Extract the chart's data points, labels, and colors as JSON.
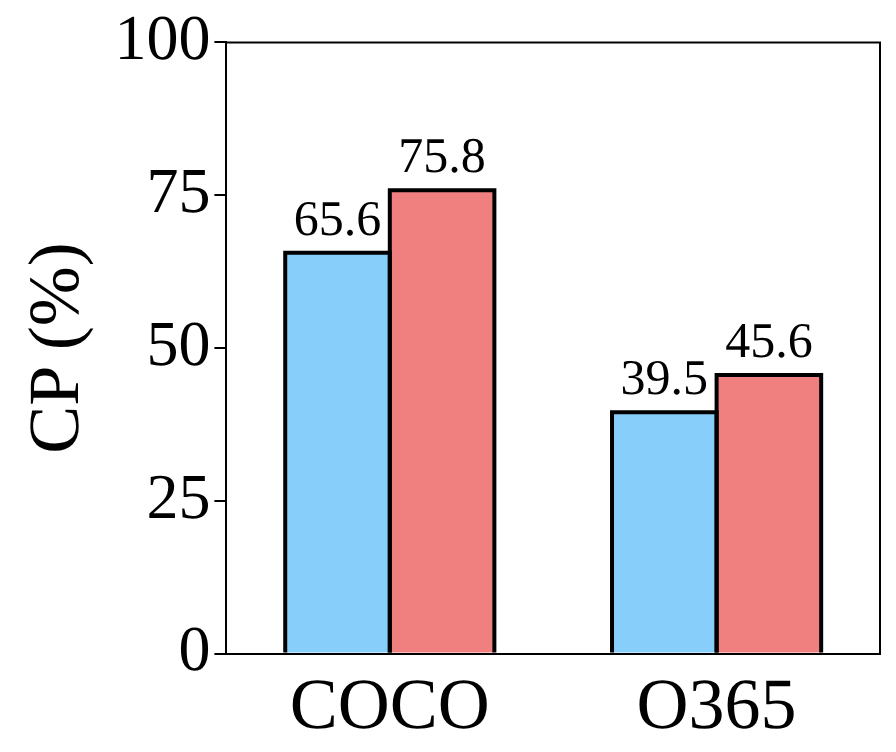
{
  "chart_data": {
    "type": "bar",
    "ylabel": "CP (%)",
    "categories": [
      "COCO",
      "O365"
    ],
    "series": [
      {
        "color": "#87cefa",
        "values": [
          65.6,
          39.5
        ]
      },
      {
        "color": "#f08080",
        "values": [
          75.8,
          45.6
        ]
      }
    ],
    "ylim": [
      0,
      100
    ],
    "yticks": [
      0,
      25,
      50,
      75,
      100
    ],
    "grid": false,
    "legend": false,
    "data_labels": true
  }
}
